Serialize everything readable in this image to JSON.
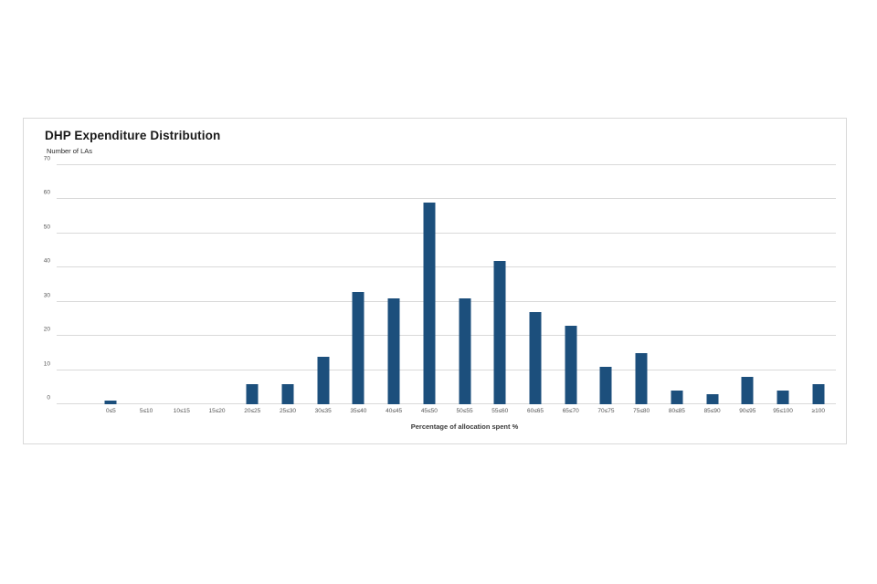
{
  "panel": {
    "background": "#ffffff",
    "border_color": "#d9d9d9"
  },
  "chart_data": {
    "type": "bar",
    "title": "DHP Expenditure Distribution",
    "ylabel": "Number of LAs",
    "xlabel": "Percentage of allocation spent %",
    "categories": [
      "0≤5",
      "5≤10",
      "10≤15",
      "15≤20",
      "20≤25",
      "25≤30",
      "30≤35",
      "35≤40",
      "40≤45",
      "45≤50",
      "50≤55",
      "55≤60",
      "60≤65",
      "65≤70",
      "70≤75",
      "75≤80",
      "80≤85",
      "85≤90",
      "90≤95",
      "95≤100",
      "≥100"
    ],
    "values": [
      1,
      0,
      0,
      0,
      6,
      6,
      14,
      33,
      31,
      59,
      31,
      42,
      27,
      23,
      11,
      15,
      4,
      3,
      8,
      4,
      6
    ],
    "ylim": [
      0,
      70
    ],
    "yticks": [
      0,
      10,
      20,
      30,
      40,
      50,
      60,
      70
    ],
    "grid": "horizontal",
    "legend": "none",
    "bar_color": "#1c4f7c",
    "gridline_color": "#d9d9d9"
  }
}
